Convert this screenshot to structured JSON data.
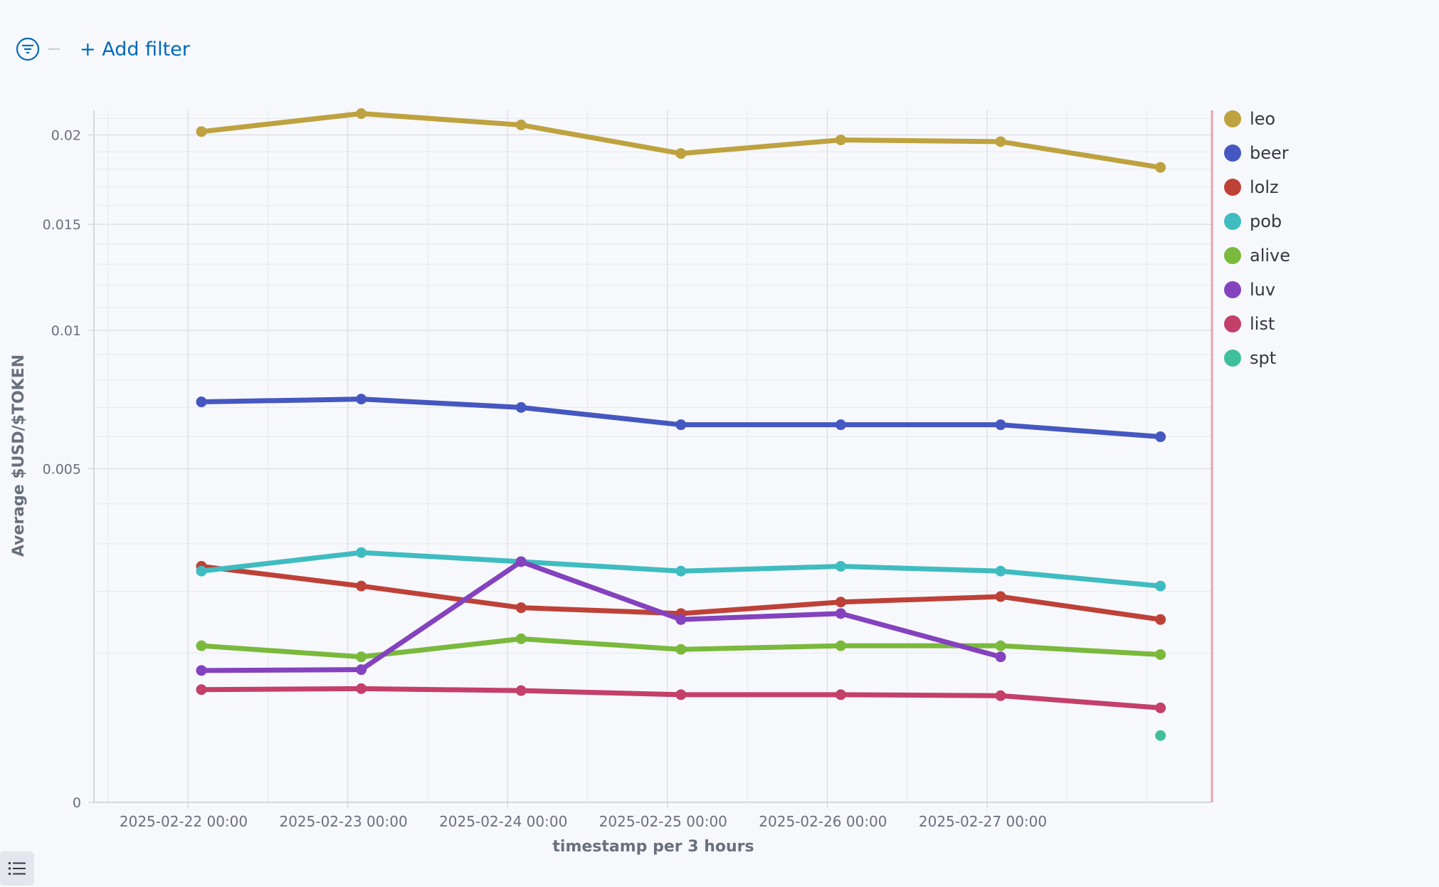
{
  "filter": {
    "add_label": "+ Add filter",
    "icon": "filter-icon"
  },
  "chart_data": {
    "type": "line",
    "title": "",
    "xlabel": "timestamp per 3 hours",
    "ylabel": "Average $USD/$TOKEN",
    "y_scale": "sqrt",
    "ylim": [
      0,
      0.0215
    ],
    "yticks": [
      0,
      0.005,
      0.01,
      0.015,
      0.02
    ],
    "ytick_labels": [
      "0",
      "0.005",
      "0.01",
      "0.015",
      "0.02"
    ],
    "x": [
      "2025-02-22 03:00",
      "2025-02-23 03:00",
      "2025-02-24 03:00",
      "2025-02-25 03:00",
      "2025-02-26 03:00",
      "2025-02-27 03:00",
      "2025-02-28 03:00"
    ],
    "xtick_labels": [
      "2025-02-22 00:00",
      "2025-02-23 00:00",
      "2025-02-24 00:00",
      "2025-02-25 00:00",
      "2025-02-26 00:00",
      "2025-02-27 00:00"
    ],
    "grid": true,
    "legend_position": "right",
    "series": [
      {
        "name": "leo",
        "color": "#bea23f",
        "values": [
          0.0202,
          0.0213,
          0.0206,
          0.0189,
          0.0197,
          0.0196,
          0.0181
        ]
      },
      {
        "name": "beer",
        "color": "#4557c0",
        "values": [
          0.0072,
          0.0073,
          0.007,
          0.0064,
          0.0064,
          0.0064,
          0.006
        ]
      },
      {
        "name": "lolz",
        "color": "#be4138",
        "values": [
          0.0025,
          0.0021,
          0.0017,
          0.0016,
          0.0018,
          0.0019,
          0.0015
        ]
      },
      {
        "name": "pob",
        "color": "#3fbcc0",
        "values": [
          0.0024,
          0.0028,
          0.0026,
          0.0024,
          0.0025,
          0.0024,
          0.0021
        ]
      },
      {
        "name": "alive",
        "color": "#7ab93c",
        "values": [
          0.0011,
          0.00095,
          0.0012,
          0.00105,
          0.0011,
          0.0011,
          0.00098
        ]
      },
      {
        "name": "luv",
        "color": "#8442be",
        "values": [
          0.00078,
          0.00079,
          0.0026,
          0.0015,
          0.0016,
          0.00095,
          null
        ]
      },
      {
        "name": "list",
        "color": "#c43f6a",
        "values": [
          0.00057,
          0.00058,
          0.00056,
          0.00052,
          0.00052,
          0.00051,
          0.0004
        ]
      },
      {
        "name": "spt",
        "color": "#3fbf9b",
        "values": [
          null,
          null,
          null,
          null,
          null,
          null,
          0.0002
        ]
      }
    ]
  }
}
